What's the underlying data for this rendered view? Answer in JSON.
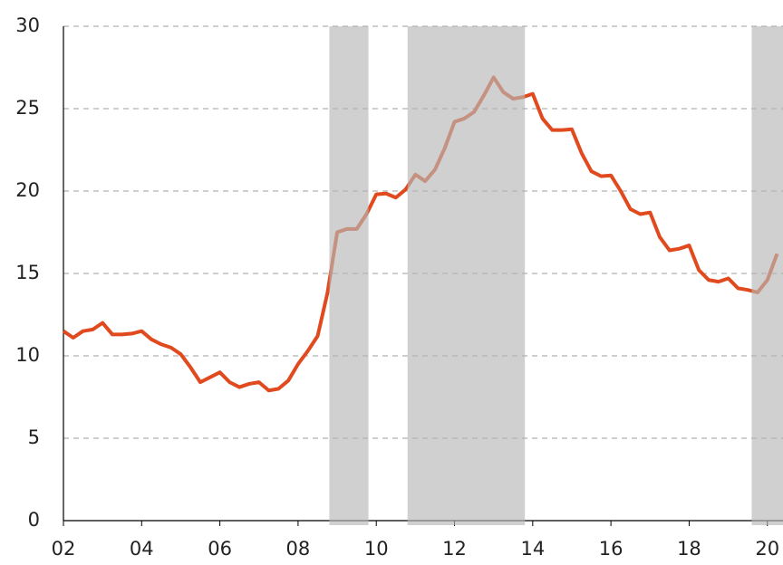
{
  "chart_data": {
    "type": "line",
    "x": [
      2002.0,
      2002.25,
      2002.5,
      2002.75,
      2003.0,
      2003.25,
      2003.5,
      2003.75,
      2004.0,
      2004.25,
      2004.5,
      2004.75,
      2005.0,
      2005.25,
      2005.5,
      2005.75,
      2006.0,
      2006.25,
      2006.5,
      2006.75,
      2007.0,
      2007.25,
      2007.5,
      2007.75,
      2008.0,
      2008.25,
      2008.5,
      2008.75,
      2009.0,
      2009.25,
      2009.5,
      2009.75,
      2010.0,
      2010.25,
      2010.5,
      2010.75,
      2011.0,
      2011.25,
      2011.5,
      2011.75,
      2012.0,
      2012.25,
      2012.5,
      2012.75,
      2013.0,
      2013.25,
      2013.5,
      2013.75,
      2014.0,
      2014.25,
      2014.5,
      2014.75,
      2015.0,
      2015.25,
      2015.5,
      2015.75,
      2016.0,
      2016.25,
      2016.5,
      2016.75,
      2017.0,
      2017.25,
      2017.5,
      2017.75,
      2018.0,
      2018.25,
      2018.5,
      2018.75,
      2019.0,
      2019.25,
      2019.5,
      2019.75,
      2020.0,
      2020.25
    ],
    "series": [
      {
        "color": "#e04a1e",
        "values": [
          11.5,
          11.1,
          11.5,
          11.6,
          12.0,
          11.3,
          11.3,
          11.35,
          11.5,
          11.0,
          10.7,
          10.5,
          10.1,
          9.3,
          8.4,
          8.7,
          9.0,
          8.4,
          8.1,
          8.3,
          8.4,
          7.9,
          8.0,
          8.5,
          9.5,
          10.3,
          11.2,
          13.8,
          17.5,
          17.7,
          17.7,
          18.6,
          19.8,
          19.85,
          19.6,
          20.1,
          21.0,
          20.6,
          21.3,
          22.6,
          24.2,
          24.4,
          24.8,
          25.8,
          26.9,
          26.0,
          25.6,
          25.7,
          25.9,
          24.4,
          23.7,
          23.7,
          23.75,
          22.3,
          21.2,
          20.9,
          20.95,
          20.0,
          18.9,
          18.6,
          18.7,
          17.2,
          16.4,
          16.5,
          16.7,
          15.2,
          14.6,
          14.5,
          14.7,
          14.1,
          14.0,
          13.85,
          14.6,
          16.2
        ]
      }
    ],
    "shaded_ranges": [
      [
        2008.8,
        2009.8
      ],
      [
        2010.8,
        2013.8
      ],
      [
        2019.6,
        2020.4
      ]
    ],
    "shade_color": "#b7b7b7",
    "xlim": [
      2002,
      2020.4
    ],
    "xticks": [
      {
        "value": 2002,
        "label": "02"
      },
      {
        "value": 2004,
        "label": "04"
      },
      {
        "value": 2006,
        "label": "06"
      },
      {
        "value": 2008,
        "label": "08"
      },
      {
        "value": 2010,
        "label": "10"
      },
      {
        "value": 2012,
        "label": "12"
      },
      {
        "value": 2014,
        "label": "14"
      },
      {
        "value": 2016,
        "label": "16"
      },
      {
        "value": 2018,
        "label": "18"
      },
      {
        "value": 2020,
        "label": "20"
      }
    ],
    "ylim": [
      0,
      30
    ],
    "yticks": [
      0,
      5,
      10,
      15,
      20,
      25,
      30
    ],
    "grid": true
  }
}
